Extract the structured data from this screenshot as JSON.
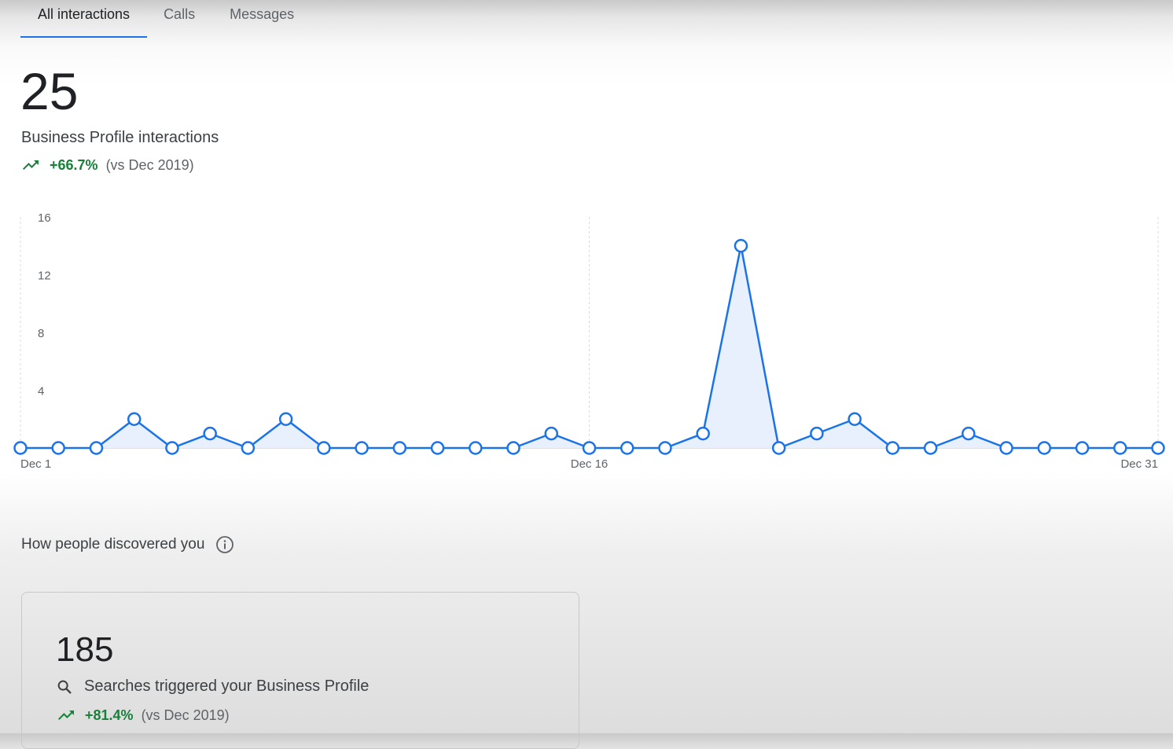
{
  "tabs": [
    {
      "label": "All interactions",
      "active": true
    },
    {
      "label": "Calls",
      "active": false
    },
    {
      "label": "Messages",
      "active": false
    }
  ],
  "summary": {
    "total": "25",
    "label": "Business Profile interactions",
    "change": "+66.7%",
    "comparison": "(vs Dec 2019)",
    "trend_icon": "trending-up-icon"
  },
  "chart_data": {
    "type": "area",
    "x": [
      "Dec 1",
      "Dec 2",
      "Dec 3",
      "Dec 4",
      "Dec 5",
      "Dec 6",
      "Dec 7",
      "Dec 8",
      "Dec 9",
      "Dec 10",
      "Dec 11",
      "Dec 12",
      "Dec 13",
      "Dec 14",
      "Dec 15",
      "Dec 16",
      "Dec 17",
      "Dec 18",
      "Dec 19",
      "Dec 20",
      "Dec 21",
      "Dec 22",
      "Dec 23",
      "Dec 24",
      "Dec 25",
      "Dec 26",
      "Dec 27",
      "Dec 28",
      "Dec 29",
      "Dec 30",
      "Dec 31"
    ],
    "values": [
      0,
      0,
      0,
      2,
      0,
      1,
      0,
      2,
      0,
      0,
      0,
      0,
      0,
      0,
      1,
      0,
      0,
      0,
      1,
      14,
      0,
      1,
      2,
      0,
      0,
      1,
      0,
      0,
      0,
      0,
      0
    ],
    "x_tick_labels": [
      "Dec 1",
      "Dec 16",
      "Dec 31"
    ],
    "y_ticks": [
      4,
      8,
      12,
      16
    ],
    "ylim": [
      0,
      16
    ],
    "line_color": "#1a73e8",
    "fill_color": "#e8f0fe",
    "grid": "vertical-dashed"
  },
  "discovery": {
    "title": "How people discovered you",
    "info_icon": "info-icon",
    "card": {
      "total": "185",
      "label": "Searches triggered your Business Profile",
      "change": "+81.4%",
      "comparison": "(vs Dec 2019)",
      "icon": "search-icon"
    }
  }
}
